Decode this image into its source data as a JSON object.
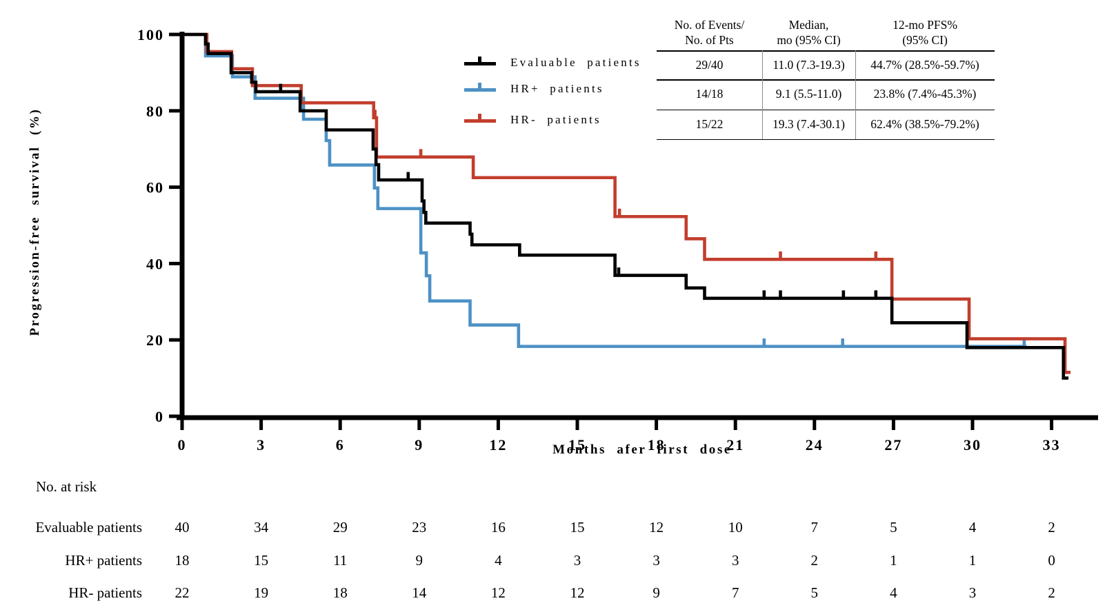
{
  "chart_data": {
    "type": "line",
    "subtype": "kaplan-meier-step",
    "title": "",
    "xlabel": "Months afer first dose",
    "ylabel": "Progression-free survival (%)",
    "xlim": [
      0,
      34.8
    ],
    "ylim": [
      0,
      100
    ],
    "xticks": [
      0,
      3,
      6,
      9,
      12,
      15,
      18,
      21,
      24,
      27,
      30,
      33
    ],
    "yticks": [
      0,
      20,
      40,
      60,
      80,
      100
    ],
    "grid": false,
    "legend_position": "upper-center-left-of-stats-table",
    "series": [
      {
        "name": "Evaluable patients",
        "color": "#000000",
        "steps": [
          [
            0,
            100
          ],
          [
            0.89,
            97.5
          ],
          [
            0.99,
            95
          ],
          [
            1.86,
            90
          ],
          [
            2.64,
            87.5
          ],
          [
            2.8,
            85
          ],
          [
            4.48,
            80
          ],
          [
            5.47,
            75
          ],
          [
            7.25,
            70
          ],
          [
            7.36,
            65.9
          ],
          [
            7.46,
            61.9
          ],
          [
            9.11,
            56.4
          ],
          [
            9.18,
            53.4
          ],
          [
            9.25,
            50.6
          ],
          [
            10.93,
            47.7
          ],
          [
            11.0,
            44.9
          ],
          [
            12.81,
            42.2
          ],
          [
            16.43,
            36.9
          ],
          [
            19.13,
            33.6
          ],
          [
            19.83,
            30.9
          ],
          [
            26.94,
            24.5
          ],
          [
            29.79,
            18.0
          ],
          [
            33.45,
            10.0
          ]
        ],
        "censor_times": [
          3.74,
          8.58,
          16.57,
          22.09,
          22.71,
          25.1,
          26.33
        ],
        "end": 33.64
      },
      {
        "name": "HR+ patients",
        "color": "#4d91c5",
        "steps": [
          [
            0,
            100
          ],
          [
            0.89,
            94.4
          ],
          [
            1.91,
            88.9
          ],
          [
            2.77,
            83.3
          ],
          [
            4.61,
            77.8
          ],
          [
            5.47,
            72.2
          ],
          [
            5.6,
            65.8
          ],
          [
            7.3,
            59.8
          ],
          [
            7.43,
            54.4
          ],
          [
            9.06,
            42.8
          ],
          [
            9.27,
            36.8
          ],
          [
            9.4,
            30.2
          ],
          [
            10.93,
            23.9
          ],
          [
            12.77,
            18.3
          ]
        ],
        "censor_times": [
          22.09,
          25.07,
          31.96
        ],
        "end": 32.05
      },
      {
        "name": "HR- patients",
        "color": "#c23e2d",
        "steps": [
          [
            0,
            100
          ],
          [
            0.94,
            95.5
          ],
          [
            1.88,
            91.0
          ],
          [
            2.67,
            86.6
          ],
          [
            4.52,
            82.1
          ],
          [
            7.27,
            78.2
          ],
          [
            7.38,
            67.9
          ],
          [
            11.05,
            62.5
          ],
          [
            16.43,
            52.3
          ],
          [
            19.13,
            46.5
          ],
          [
            19.83,
            41.1
          ],
          [
            26.94,
            30.7
          ],
          [
            29.87,
            20.3
          ],
          [
            33.51,
            11.5
          ]
        ],
        "censor_times": [
          7.32,
          9.06,
          16.6,
          22.71,
          26.33
        ],
        "end": 33.72
      }
    ]
  },
  "stats_table": {
    "col_headers": [
      [
        "No. of Events/",
        "No. of Pts"
      ],
      [
        "Median,",
        "mo (95% CI)"
      ],
      [
        "12-mo PFS%",
        "(95% CI)"
      ]
    ],
    "rows": [
      [
        "29/40",
        "11.0 (7.3-19.3)",
        "44.7% (28.5%-59.7%)"
      ],
      [
        "14/18",
        "9.1 (5.5-11.0)",
        "23.8% (7.4%-45.3%)"
      ],
      [
        "15/22",
        "19.3 (7.4-30.1)",
        "62.4% (38.5%-79.2%)"
      ]
    ]
  },
  "risk_table": {
    "title": "No. at risk",
    "rows": [
      {
        "label": "Evaluable patients",
        "counts": [
          40,
          34,
          29,
          23,
          16,
          15,
          12,
          10,
          7,
          5,
          4,
          2
        ]
      },
      {
        "label": "HR+ patients",
        "counts": [
          18,
          15,
          11,
          9,
          4,
          3,
          3,
          3,
          2,
          1,
          1,
          0
        ]
      },
      {
        "label": "HR- patients",
        "counts": [
          22,
          19,
          18,
          14,
          12,
          12,
          9,
          7,
          5,
          4,
          3,
          2
        ]
      }
    ]
  }
}
